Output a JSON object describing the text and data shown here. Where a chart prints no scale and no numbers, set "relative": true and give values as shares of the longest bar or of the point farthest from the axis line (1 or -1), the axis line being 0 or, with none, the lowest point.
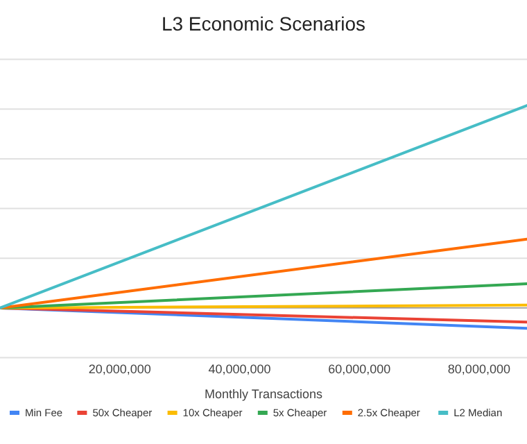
{
  "chart_data": {
    "type": "line",
    "title": "L3 Economic Scenarios",
    "xlabel": "Monthly Transactions",
    "relative": true,
    "x": [
      0,
      88000000
    ],
    "xlim": [
      0,
      88000000
    ],
    "xticks": [
      {
        "value": 20000000,
        "label": "20,000,000"
      },
      {
        "value": 40000000,
        "label": "40,000,000"
      },
      {
        "value": 60000000,
        "label": "60,000,000"
      },
      {
        "value": 80000000,
        "label": "80,000,000"
      }
    ],
    "tick_labels": "x",
    "grid": "y",
    "legend": "bottom",
    "marker": "none",
    "line_style": "solid",
    "series": [
      {
        "name": "Min Fee",
        "color": "#4285f4",
        "values": [
          0,
          -0.1
        ]
      },
      {
        "name": "50x Cheaper",
        "color": "#ea4335",
        "values": [
          0,
          -0.07
        ]
      },
      {
        "name": "10x Cheaper",
        "color": "#fbbc04",
        "values": [
          0,
          0.014
        ]
      },
      {
        "name": "5x Cheaper",
        "color": "#34a853",
        "values": [
          0,
          0.12
        ]
      },
      {
        "name": "2.5x Cheaper",
        "color": "#ff6d01",
        "values": [
          0,
          0.34
        ]
      },
      {
        "name": "L2 Median",
        "color": "#46bdc6",
        "values": [
          0,
          1
        ]
      }
    ]
  }
}
